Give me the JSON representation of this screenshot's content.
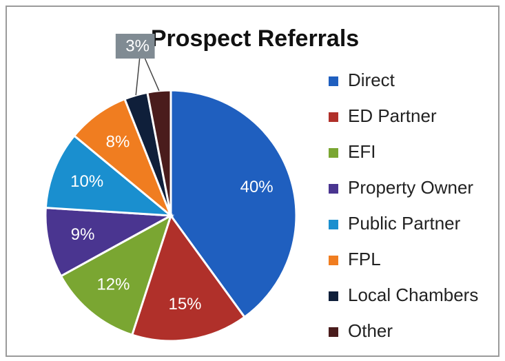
{
  "chart_data": {
    "type": "pie",
    "title": "Prospect Referrals",
    "categories": [
      "Direct",
      "ED Partner",
      "EFI",
      "Property Owner",
      "Public Partner",
      "FPL",
      "Local Chambers",
      "Other"
    ],
    "values": [
      40,
      15,
      12,
      9,
      10,
      8,
      3,
      3
    ],
    "value_labels": [
      "40%",
      "15%",
      "12%",
      "9%",
      "10%",
      "8%",
      "3%",
      "3%"
    ],
    "colors": [
      "#1f5fbf",
      "#b0302a",
      "#7aa632",
      "#4a3590",
      "#1a8fcf",
      "#f07d20",
      "#0f1f3a",
      "#4a1c1c"
    ],
    "legend": "right"
  }
}
